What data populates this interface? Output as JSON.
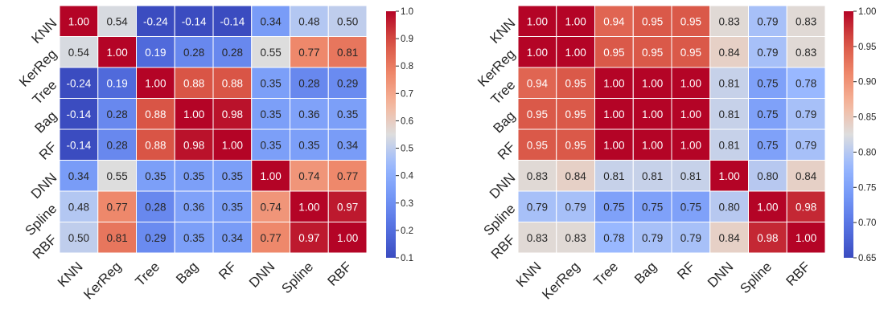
{
  "chart_data": [
    {
      "type": "heatmap",
      "labels": [
        "KNN",
        "KerReg",
        "Tree",
        "Bag",
        "RF",
        "DNN",
        "Spline",
        "RBF"
      ],
      "values": [
        [
          1.0,
          0.54,
          -0.24,
          -0.14,
          -0.14,
          0.34,
          0.48,
          0.5
        ],
        [
          0.54,
          1.0,
          0.19,
          0.28,
          0.28,
          0.55,
          0.77,
          0.81
        ],
        [
          -0.24,
          0.19,
          1.0,
          0.88,
          0.88,
          0.35,
          0.28,
          0.29
        ],
        [
          -0.14,
          0.28,
          0.88,
          1.0,
          0.98,
          0.35,
          0.36,
          0.35
        ],
        [
          -0.14,
          0.28,
          0.88,
          0.98,
          1.0,
          0.35,
          0.35,
          0.34
        ],
        [
          0.34,
          0.55,
          0.35,
          0.35,
          0.35,
          1.0,
          0.74,
          0.77
        ],
        [
          0.48,
          0.77,
          0.28,
          0.36,
          0.35,
          0.74,
          1.0,
          0.97
        ],
        [
          0.5,
          0.81,
          0.29,
          0.35,
          0.34,
          0.77,
          0.97,
          1.0
        ]
      ],
      "colormap": "coolwarm",
      "vmin": 0.1,
      "vmax": 1.0,
      "colorbar_ticks": [
        "0.1",
        "0.2",
        "0.3",
        "0.4",
        "0.5",
        "0.6",
        "0.7",
        "0.8",
        "0.9",
        "1.0"
      ]
    },
    {
      "type": "heatmap",
      "labels": [
        "KNN",
        "KerReg",
        "Tree",
        "Bag",
        "RF",
        "DNN",
        "Spline",
        "RBF"
      ],
      "values": [
        [
          1.0,
          1.0,
          0.94,
          0.95,
          0.95,
          0.83,
          0.79,
          0.83
        ],
        [
          1.0,
          1.0,
          0.95,
          0.95,
          0.95,
          0.84,
          0.79,
          0.83
        ],
        [
          0.94,
          0.95,
          1.0,
          1.0,
          1.0,
          0.81,
          0.75,
          0.78
        ],
        [
          0.95,
          0.95,
          1.0,
          1.0,
          1.0,
          0.81,
          0.75,
          0.79
        ],
        [
          0.95,
          0.95,
          1.0,
          1.0,
          1.0,
          0.81,
          0.75,
          0.79
        ],
        [
          0.83,
          0.84,
          0.81,
          0.81,
          0.81,
          1.0,
          0.8,
          0.84
        ],
        [
          0.79,
          0.79,
          0.75,
          0.75,
          0.75,
          0.8,
          1.0,
          0.98
        ],
        [
          0.83,
          0.83,
          0.78,
          0.79,
          0.79,
          0.84,
          0.98,
          1.0
        ]
      ],
      "colormap": "coolwarm",
      "vmin": 0.65,
      "vmax": 1.0,
      "colorbar_ticks": [
        "0.65",
        "0.70",
        "0.75",
        "0.80",
        "0.85",
        "0.90",
        "0.95",
        "1.00"
      ]
    }
  ]
}
